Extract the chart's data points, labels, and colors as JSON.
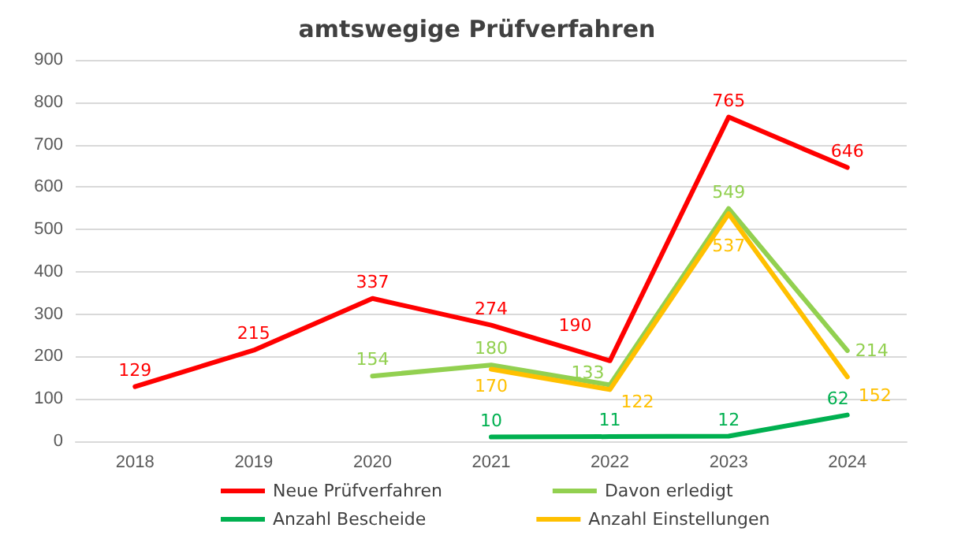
{
  "chart_data": {
    "type": "line",
    "title": "amtswegige Prüfverfahren",
    "categories": [
      "2018",
      "2019",
      "2020",
      "2021",
      "2022",
      "2023",
      "2024"
    ],
    "series": [
      {
        "name": "Neue Prüfverfahren",
        "color": "#ff0000",
        "values": [
          129,
          215,
          337,
          274,
          190,
          765,
          646
        ]
      },
      {
        "name": "Davon erledigt",
        "color": "#92d050",
        "values": [
          null,
          null,
          154,
          180,
          133,
          549,
          214
        ]
      },
      {
        "name": "Anzahl Bescheide",
        "color": "#00b050",
        "values": [
          null,
          null,
          null,
          10,
          11,
          12,
          62
        ]
      },
      {
        "name": "Anzahl Einstellungen",
        "color": "#ffc000",
        "values": [
          null,
          null,
          null,
          170,
          122,
          537,
          152
        ]
      }
    ],
    "ylim": [
      0,
      900
    ],
    "yticks": [
      0,
      100,
      200,
      300,
      400,
      500,
      600,
      700,
      800,
      900
    ],
    "grid": "y",
    "legend": "bottom",
    "data_labels": true,
    "marker": "none",
    "line_style": "solid"
  }
}
